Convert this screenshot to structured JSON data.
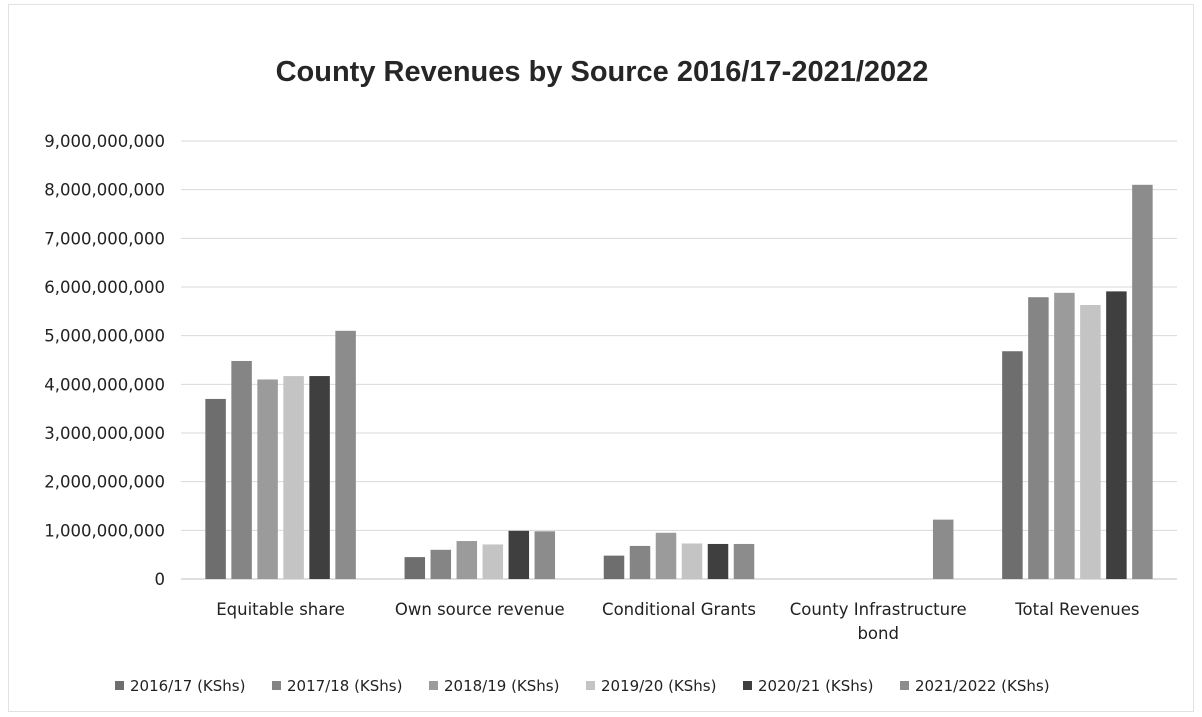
{
  "chart_data": {
    "type": "bar",
    "title": "County Revenues by Source 2016/17-2021/2022",
    "xlabel": "",
    "ylabel": "",
    "ylim": [
      0,
      9000000000
    ],
    "yticks": [
      0,
      1000000000,
      2000000000,
      3000000000,
      4000000000,
      5000000000,
      6000000000,
      7000000000,
      8000000000,
      9000000000
    ],
    "ytick_labels": [
      "0",
      "1,000,000,000",
      "2,000,000,000",
      "3,000,000,000",
      "4,000,000,000",
      "5,000,000,000",
      "6,000,000,000",
      "7,000,000,000",
      "8,000,000,000",
      "9,000,000,000"
    ],
    "grid": true,
    "legend_position": "bottom",
    "categories": [
      [
        "Equitable share"
      ],
      [
        "Own source revenue"
      ],
      [
        "Conditional Grants"
      ],
      [
        "County Infrastructure",
        "bond"
      ],
      [
        "Total Revenues"
      ]
    ],
    "series": [
      {
        "name": "2016/17 (KShs)",
        "color": "#6e6e6e",
        "values": [
          3700000000,
          450000000,
          480000000,
          0,
          4680000000
        ]
      },
      {
        "name": "2017/18 (KShs)",
        "color": "#858585",
        "values": [
          4480000000,
          600000000,
          680000000,
          0,
          5790000000
        ]
      },
      {
        "name": "2018/19 (KShs)",
        "color": "#9b9b9b",
        "values": [
          4100000000,
          780000000,
          950000000,
          0,
          5880000000
        ]
      },
      {
        "name": "2019/20 (KShs)",
        "color": "#c4c4c4",
        "values": [
          4170000000,
          710000000,
          730000000,
          0,
          5630000000
        ]
      },
      {
        "name": "2020/21 (KShs)",
        "color": "#3f3f3f",
        "values": [
          4170000000,
          990000000,
          720000000,
          0,
          5910000000
        ]
      },
      {
        "name": "2021/2022 (KShs)",
        "color": "#8c8c8c",
        "values": [
          5100000000,
          980000000,
          720000000,
          1220000000,
          8100000000
        ]
      }
    ]
  }
}
